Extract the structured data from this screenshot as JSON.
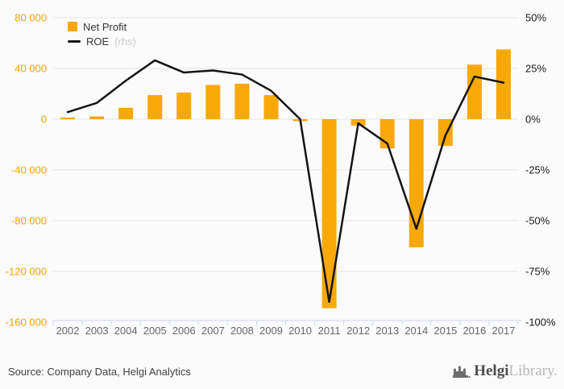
{
  "legend": {
    "net_profit": "Net Profit",
    "roe": "ROE",
    "roe_suffix": "(rhs)"
  },
  "footer": {
    "source": "Source: Company Data, Helgi Analytics",
    "logo_helgi": "Helgi",
    "logo_library": "Library."
  },
  "colors": {
    "bar": "#F8A807",
    "line": "#141414",
    "grid": "#e6e6e6",
    "axis": "#ccd6eb",
    "x_labels": "#666666",
    "left_labels": "#F5A300",
    "right_labels": "#1a1a1a"
  },
  "chart_data": {
    "type": "bar",
    "title": "",
    "categories": [
      "2002",
      "2003",
      "2004",
      "2005",
      "2006",
      "2007",
      "2008",
      "2009",
      "2010",
      "2011",
      "2012",
      "2013",
      "2014",
      "2015",
      "2016",
      "2017"
    ],
    "series": [
      {
        "name": "Net Profit",
        "type": "bar",
        "axis": "left",
        "values": [
          1300,
          2200,
          9000,
          19000,
          21000,
          27000,
          28000,
          19000,
          -1500,
          -149000,
          -5000,
          -23000,
          -101000,
          -21000,
          43000,
          55000
        ]
      },
      {
        "name": "ROE (rhs)",
        "type": "line",
        "axis": "right",
        "values": [
          3.5,
          8,
          19,
          29,
          23,
          24,
          22,
          14,
          0,
          -90,
          -2,
          -12,
          -54,
          -8,
          21,
          18
        ]
      }
    ],
    "left_axis": {
      "label": "Net Profit",
      "ylim": [
        -160000,
        80000
      ],
      "ticks": [
        80000,
        40000,
        0,
        -40000,
        -80000,
        -120000,
        -160000
      ],
      "tick_labels": [
        "80 000",
        "40 000",
        "0",
        "-40 000",
        "-80 000",
        "-120 000",
        "-160 000"
      ]
    },
    "right_axis": {
      "label": "ROE %",
      "ylim": [
        -100,
        50
      ],
      "ticks": [
        50,
        25,
        0,
        -25,
        -50,
        -75,
        -100
      ],
      "tick_labels": [
        "50%",
        "25%",
        "0%",
        "-25%",
        "-50%",
        "-75%",
        "-100%"
      ]
    },
    "grid": true,
    "legend_position": "top-left"
  }
}
